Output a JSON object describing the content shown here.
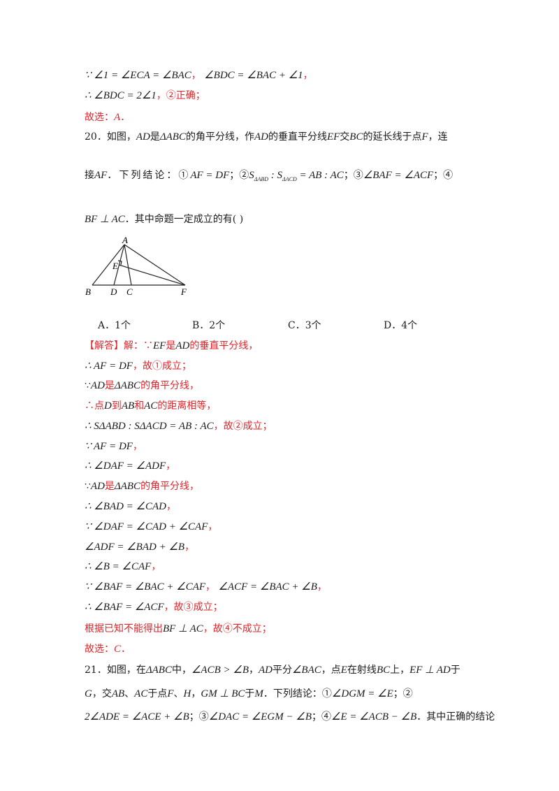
{
  "prev": {
    "l1a": "∵ ∠1 = ∠ECA = ∠BAC",
    "l1b": "，",
    "l1c": "∠BDC = ∠BAC + ∠1",
    "l1d": "，",
    "l2a": "∴ ∠BDC = 2∠1",
    "l2b": "，②正确；",
    "l3a": "故选：",
    "l3b": "A",
    "l3c": "．"
  },
  "q20": {
    "l1a": "20．如图，",
    "l1b": "AD",
    "l1c": "是",
    "l1d": "ΔABC",
    "l1e": "的角平分线，作",
    "l1f": "AD",
    "l1g": "的垂直平分线",
    "l1h": "EF",
    "l1i": "交",
    "l1j": "BC",
    "l1k": "的延长线于点",
    "l1l": "F",
    "l1m": "，连",
    "l2a": "接",
    "l2b": "AF",
    "l2c": "．下列结论：①",
    "l2d": "AF = DF",
    "l2e": "；②",
    "l2f": "S",
    "l2g": "ΔABD",
    "l2h": " : S",
    "l2i": "ΔACD",
    "l2j": " = AB : AC",
    "l2k": "；③",
    "l2l": "∠BAF = ∠ACF",
    "l2m": "；④",
    "l3a": "BF ⊥ AC",
    "l3b": "．其中命题一定成立的有",
    "l3c": "(      )",
    "figure": {
      "A": "A",
      "B": "B",
      "C": "C",
      "D": "D",
      "E": "E",
      "F": "F"
    },
    "options": [
      "A．1个",
      "B．2个",
      "C．3个",
      "D．4个"
    ]
  },
  "sol": {
    "s1a": "【解答】",
    "s1b": "解：∵",
    "s1c": "EF",
    "s1d": "是",
    "s1e": "AD",
    "s1f": "的垂直平分线，",
    "s2a": "∴ AF = DF",
    "s2b": "，故①成立；",
    "s3a": "∵",
    "s3b": "AD",
    "s3c": "是",
    "s3d": "ΔABC",
    "s3e": "的角平分线，",
    "s4a": "∴点",
    "s4b": "D",
    "s4c": "到",
    "s4d": "AB",
    "s4e": "和",
    "s4f": "AC",
    "s4g": "的距离相等，",
    "s5a": "∴ SΔABD : SΔACD = AB : AC",
    "s5b": "，故②成立；",
    "s6a": "∵ AF = DF",
    "s6b": "，",
    "s7a": "∴ ∠DAF = ∠ADF",
    "s7b": "，",
    "s8a": "∵",
    "s8b": "AD",
    "s8c": "是",
    "s8d": "ΔABC",
    "s8e": "的角平分线，",
    "s9a": "∴ ∠BAD = ∠CAD",
    "s9b": "，",
    "s10a": "∵ ∠DAF = ∠CAD + ∠CAF",
    "s10b": "，",
    "s11a": "∠ADF = ∠BAD + ∠B",
    "s11b": "，",
    "s12a": "∴ ∠B = ∠CAF",
    "s12b": "，",
    "s13a": "∵ ∠BAF = ∠BAC + ∠CAF",
    "s13b": "，",
    "s13c": "∠ACF = ∠BAC + ∠B",
    "s13d": "，",
    "s14a": "∴ ∠BAF = ∠ACF",
    "s14b": "，故③成立；",
    "s15a": "根据已知不能得出",
    "s15b": "BF ⊥ AC",
    "s15c": "，故④不成立；",
    "s16a": "故选：",
    "s16b": "C",
    "s16c": "．"
  },
  "q21": {
    "l1a": "21．如图，在",
    "l1b": "ΔABC",
    "l1c": "中，",
    "l1d": "∠ACB > ∠B",
    "l1e": "，",
    "l1f": "AD",
    "l1g": "平分",
    "l1h": "∠BAC",
    "l1i": "，点",
    "l1j": "E",
    "l1k": "在射线",
    "l1l": "BC",
    "l1m": "上，",
    "l1n": "EF ⊥ AD",
    "l1o": "于",
    "l2a": "G",
    "l2b": "，交",
    "l2c": "AB",
    "l2d": "、",
    "l2e": "AC",
    "l2f": "于点",
    "l2g": "F",
    "l2h": "、",
    "l2i": "H",
    "l2j": "，",
    "l2k": "GM ⊥ BC",
    "l2l": "于",
    "l2m": "M",
    "l2n": "．下列结论：①",
    "l2o": "∠DGM = ∠E",
    "l2p": "；②",
    "l3a": "2∠ADE = ∠ACE + ∠B",
    "l3b": "；③",
    "l3c": "∠DAC = ∠EGM − ∠B",
    "l3d": "；④",
    "l3e": "∠E = ∠ACB − ∠B",
    "l3f": "．其中正确的结论"
  }
}
